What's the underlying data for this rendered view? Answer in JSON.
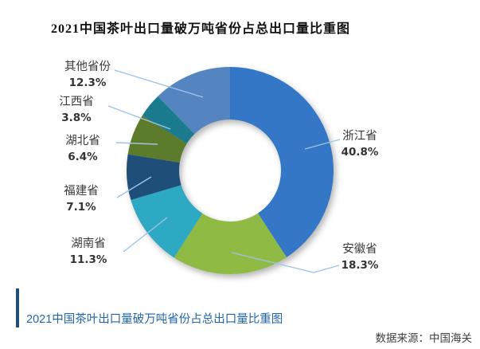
{
  "title": "2021中国茶叶出口量破万吨省份占总出口量比重图",
  "chart_data": {
    "type": "pie",
    "subtype": "donut",
    "title": "2021中国茶叶出口量破万吨省份占总出口量比重图",
    "unit": "percent",
    "total": 100.0,
    "start_angle_deg": 0,
    "direction": "clockwise",
    "hole_ratio": 0.49,
    "legend_position": "none",
    "labels_style": "callout-with-leader-lines",
    "leader_line_color": "#9DC3E6",
    "slices": [
      {
        "name": "浙江省",
        "value": 40.8,
        "pct_label": "40.8%",
        "color": "#3377C6",
        "label_side": "right"
      },
      {
        "name": "安徽省",
        "value": 18.3,
        "pct_label": "18.3%",
        "color": "#8FBB44",
        "label_side": "right"
      },
      {
        "name": "湖南省",
        "value": 11.3,
        "pct_label": "11.3%",
        "color": "#2EA9C4",
        "label_side": "left"
      },
      {
        "name": "福建省",
        "value": 7.1,
        "pct_label": "7.1%",
        "color": "#1F4E79",
        "label_side": "left"
      },
      {
        "name": "湖北省",
        "value": 6.4,
        "pct_label": "6.4%",
        "color": "#5D7C2B",
        "label_side": "left"
      },
      {
        "name": "江西省",
        "value": 3.8,
        "pct_label": "3.8%",
        "color": "#1B7B8E",
        "label_side": "left"
      },
      {
        "name": "其他省份",
        "value": 12.3,
        "pct_label": "12.3%",
        "color": "#5585C1",
        "label_side": "left"
      }
    ]
  },
  "caption": {
    "text": "2021中国茶叶出口量破万吨省份占总出口量比重图",
    "text_color": "#2166A5",
    "bar_color": "#1F4E79"
  },
  "source": {
    "text": "数据来源：中国海关",
    "color": "#404040"
  }
}
